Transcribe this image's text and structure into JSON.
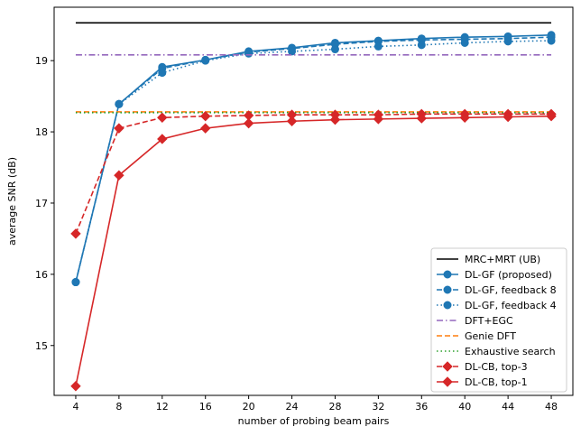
{
  "chart_data": {
    "type": "line",
    "title": "",
    "xlabel": "number of probing beam pairs",
    "ylabel": "average SNR (dB)",
    "x": [
      4,
      8,
      12,
      16,
      20,
      24,
      28,
      32,
      36,
      40,
      44,
      48
    ],
    "xticks": [
      4,
      8,
      12,
      16,
      20,
      24,
      28,
      32,
      36,
      40,
      44,
      48
    ],
    "yticks": [
      15,
      16,
      17,
      18,
      19
    ],
    "xlim": [
      2.0,
      50.0
    ],
    "ylim": [
      14.3,
      19.75
    ],
    "grid": false,
    "legend_position": "lower-right",
    "series": [
      {
        "name": "MRC+MRT (UB)",
        "color": "#000000",
        "dash": "solid",
        "marker": "none",
        "values": [
          19.53,
          19.53,
          19.53,
          19.53,
          19.53,
          19.53,
          19.53,
          19.53,
          19.53,
          19.53,
          19.53,
          19.53
        ]
      },
      {
        "name": "DL-GF (proposed)",
        "color": "#1f77b4",
        "dash": "solid",
        "marker": "circle",
        "values": [
          15.89,
          18.39,
          18.91,
          19.01,
          19.13,
          19.18,
          19.25,
          19.28,
          19.31,
          19.33,
          19.34,
          19.36
        ]
      },
      {
        "name": "DL-GF, feedback 8",
        "color": "#1f77b4",
        "dash": "dashed",
        "marker": "circle",
        "values": [
          15.89,
          18.39,
          18.89,
          19.01,
          19.12,
          19.17,
          19.23,
          19.27,
          19.29,
          19.3,
          19.31,
          19.33
        ]
      },
      {
        "name": "DL-GF, feedback 4",
        "color": "#1f77b4",
        "dash": "dotted",
        "marker": "circle",
        "values": [
          15.89,
          18.39,
          18.83,
          19.0,
          19.1,
          19.13,
          19.16,
          19.2,
          19.22,
          19.25,
          19.27,
          19.28
        ]
      },
      {
        "name": "DFT+EGC",
        "color": "#9467bd",
        "dash": "dashdot",
        "marker": "none",
        "values": [
          19.08,
          19.08,
          19.08,
          19.08,
          19.08,
          19.08,
          19.08,
          19.08,
          19.08,
          19.08,
          19.08,
          19.08
        ]
      },
      {
        "name": "Genie DFT",
        "color": "#ff7f0e",
        "dash": "dashed",
        "marker": "none",
        "values": [
          18.28,
          18.28,
          18.28,
          18.28,
          18.28,
          18.28,
          18.28,
          18.28,
          18.28,
          18.28,
          18.28,
          18.28
        ]
      },
      {
        "name": "Exhaustive search",
        "color": "#2ca02c",
        "dash": "dotted",
        "marker": "none",
        "values": [
          18.27,
          18.27,
          18.27,
          18.27,
          18.27,
          18.27,
          18.27,
          18.27,
          18.27,
          18.27,
          18.27,
          18.27
        ]
      },
      {
        "name": "DL-CB, top-3",
        "color": "#d62728",
        "dash": "dashed",
        "marker": "diamond",
        "values": [
          16.57,
          18.05,
          18.2,
          18.22,
          18.23,
          18.24,
          18.24,
          18.24,
          18.25,
          18.25,
          18.25,
          18.25
        ]
      },
      {
        "name": "DL-CB, top-1",
        "color": "#d62728",
        "dash": "solid",
        "marker": "diamond",
        "values": [
          14.43,
          17.39,
          17.9,
          18.05,
          18.12,
          18.15,
          18.17,
          18.18,
          18.19,
          18.2,
          18.21,
          18.22
        ]
      }
    ]
  }
}
